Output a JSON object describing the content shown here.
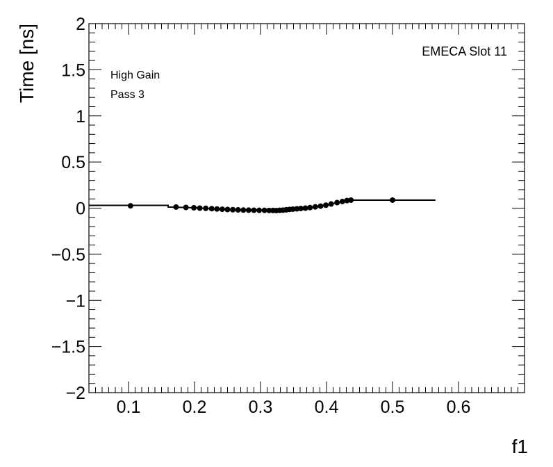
{
  "chart_data": {
    "type": "scatter",
    "xlabel": "f1",
    "ylabel": "Time [ns]",
    "xlim": [
      0.04,
      0.7
    ],
    "ylim": [
      -2,
      2
    ],
    "x_ticks": [
      0.1,
      0.2,
      0.3,
      0.4,
      0.5,
      0.6
    ],
    "x_tick_labels": [
      "0.1",
      "0.2",
      "0.3",
      "0.4",
      "0.5",
      "0.6"
    ],
    "y_ticks": [
      -2,
      -1.5,
      -1,
      -0.5,
      0,
      0.5,
      1,
      1.5,
      2
    ],
    "y_tick_labels": [
      "−2",
      "−1.5",
      "−1",
      "−0.5",
      "0",
      "0.5",
      "1",
      "1.5",
      "2"
    ],
    "annotations": {
      "slot": "EMECA Slot 11",
      "gain": "High Gain",
      "pass": "Pass 3"
    },
    "grid": false,
    "points": [
      {
        "x": 0.103,
        "y": 0.025
      },
      {
        "x": 0.172,
        "y": 0.012
      },
      {
        "x": 0.187,
        "y": 0.008
      },
      {
        "x": 0.199,
        "y": 0.004
      },
      {
        "x": 0.208,
        "y": 0.0
      },
      {
        "x": 0.217,
        "y": -0.002
      },
      {
        "x": 0.226,
        "y": -0.006
      },
      {
        "x": 0.234,
        "y": -0.009
      },
      {
        "x": 0.242,
        "y": -0.012
      },
      {
        "x": 0.25,
        "y": -0.015
      },
      {
        "x": 0.258,
        "y": -0.017
      },
      {
        "x": 0.266,
        "y": -0.019
      },
      {
        "x": 0.274,
        "y": -0.021
      },
      {
        "x": 0.282,
        "y": -0.022
      },
      {
        "x": 0.29,
        "y": -0.023
      },
      {
        "x": 0.298,
        "y": -0.024
      },
      {
        "x": 0.306,
        "y": -0.024
      },
      {
        "x": 0.313,
        "y": -0.025
      },
      {
        "x": 0.319,
        "y": -0.025
      },
      {
        "x": 0.324,
        "y": -0.026
      },
      {
        "x": 0.329,
        "y": -0.024
      },
      {
        "x": 0.334,
        "y": -0.022
      },
      {
        "x": 0.339,
        "y": -0.018
      },
      {
        "x": 0.344,
        "y": -0.014
      },
      {
        "x": 0.349,
        "y": -0.011
      },
      {
        "x": 0.355,
        "y": -0.008
      },
      {
        "x": 0.361,
        "y": -0.004
      },
      {
        "x": 0.368,
        "y": 0.0
      },
      {
        "x": 0.375,
        "y": 0.006
      },
      {
        "x": 0.383,
        "y": 0.014
      },
      {
        "x": 0.391,
        "y": 0.022
      },
      {
        "x": 0.399,
        "y": 0.032
      },
      {
        "x": 0.407,
        "y": 0.045
      },
      {
        "x": 0.416,
        "y": 0.06
      },
      {
        "x": 0.424,
        "y": 0.072
      },
      {
        "x": 0.431,
        "y": 0.082
      },
      {
        "x": 0.437,
        "y": 0.087
      },
      {
        "x": 0.5,
        "y": 0.087
      }
    ],
    "fit_curve": [
      {
        "x": 0.04,
        "y": 0.03
      },
      {
        "x": 0.16,
        "y": 0.03
      },
      {
        "x": 0.16,
        "y": 0.012
      },
      {
        "x": 0.2,
        "y": 0.004
      },
      {
        "x": 0.24,
        "y": -0.011
      },
      {
        "x": 0.28,
        "y": -0.021
      },
      {
        "x": 0.32,
        "y": -0.025
      },
      {
        "x": 0.35,
        "y": -0.012
      },
      {
        "x": 0.38,
        "y": 0.01
      },
      {
        "x": 0.41,
        "y": 0.05
      },
      {
        "x": 0.437,
        "y": 0.087
      },
      {
        "x": 0.565,
        "y": 0.087
      }
    ]
  }
}
